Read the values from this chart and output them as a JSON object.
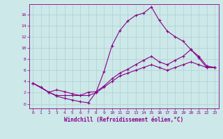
{
  "xlabel": "Windchill (Refroidissement éolien,°C)",
  "bg_color": "#cce8e8",
  "line_color": "#880088",
  "xlim": [
    -0.5,
    23.5
  ],
  "ylim": [
    -0.8,
    17.8
  ],
  "xticks": [
    0,
    1,
    2,
    3,
    4,
    5,
    6,
    7,
    8,
    9,
    10,
    11,
    12,
    13,
    14,
    15,
    16,
    17,
    18,
    19,
    20,
    21,
    22,
    23
  ],
  "yticks": [
    0,
    2,
    4,
    6,
    8,
    10,
    12,
    14,
    16
  ],
  "line1_x": [
    0,
    1,
    2,
    3,
    4,
    5,
    6,
    7,
    8,
    9,
    10,
    11,
    12,
    13,
    14,
    15,
    16,
    17,
    18,
    19,
    20,
    21,
    22,
    23
  ],
  "line1_y": [
    3.7,
    3.0,
    2.1,
    1.4,
    1.0,
    0.7,
    0.4,
    0.2,
    2.1,
    5.8,
    10.4,
    13.1,
    14.8,
    15.8,
    16.2,
    17.3,
    14.9,
    13.0,
    12.0,
    11.2,
    9.7,
    8.2,
    6.5,
    6.5
  ],
  "line2_x": [
    0,
    2,
    3,
    4,
    5,
    6,
    7,
    8,
    9,
    10,
    11,
    12,
    13,
    14,
    15,
    16,
    17,
    18,
    19,
    20,
    21,
    22,
    23
  ],
  "line2_y": [
    3.7,
    2.1,
    2.5,
    2.2,
    1.8,
    1.5,
    2.1,
    2.2,
    3.2,
    4.5,
    5.5,
    6.2,
    7.0,
    7.8,
    8.5,
    7.5,
    7.0,
    7.8,
    8.5,
    9.7,
    8.5,
    6.8,
    6.5
  ],
  "line3_x": [
    0,
    2,
    3,
    4,
    5,
    6,
    7,
    8,
    9,
    10,
    11,
    12,
    13,
    14,
    15,
    16,
    17,
    18,
    19,
    20,
    21,
    22,
    23
  ],
  "line3_y": [
    3.7,
    2.1,
    1.5,
    1.5,
    1.5,
    1.5,
    1.5,
    2.0,
    3.0,
    4.0,
    5.0,
    5.5,
    6.0,
    6.5,
    7.0,
    6.5,
    6.0,
    6.5,
    7.0,
    7.5,
    7.0,
    6.5,
    6.5
  ],
  "grid_color": "#b0d0d0",
  "marker": "+",
  "marker_size": 3,
  "linewidth": 0.8,
  "tick_fontsize": 4.5,
  "xlabel_fontsize": 5.5
}
